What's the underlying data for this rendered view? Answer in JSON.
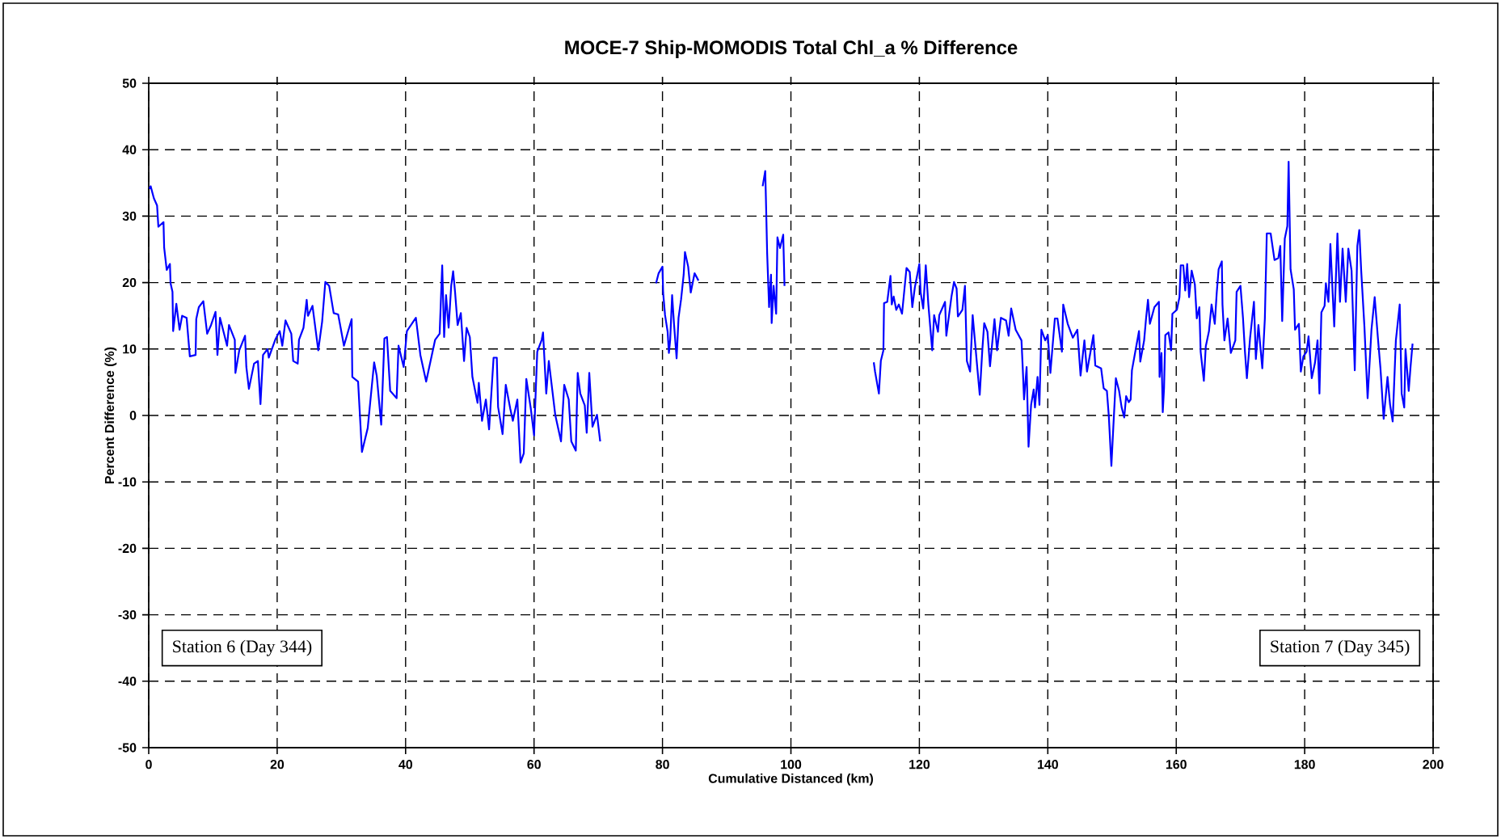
{
  "chart_data": {
    "type": "line",
    "title": "MOCE-7 Ship-MOMODIS Total Chl_a % Difference",
    "xlabel": "Cumulative Distanced (km)",
    "ylabel": "Percent Difference (%)",
    "annotations": [
      "Station 6 (Day 344)",
      "Station 7 (Day 345)"
    ],
    "xlim": [
      0,
      200
    ],
    "ylim": [
      -50,
      50
    ],
    "xticks": [
      0,
      20,
      40,
      60,
      80,
      100,
      120,
      140,
      160,
      180,
      200
    ],
    "yticks": [
      -50,
      -40,
      -30,
      -20,
      -10,
      0,
      10,
      20,
      30,
      40,
      50
    ],
    "grid": true,
    "marker": "none",
    "line_style": "solid",
    "series": [
      {
        "color": "#0000ff",
        "x": [
          0.1,
          0.3,
          0.8,
          1.3,
          1.5,
          2.3,
          2.4,
          2.8,
          3.3,
          3.4,
          3.7,
          3.8,
          4.3,
          4.8,
          5.2,
          5.9,
          6.4,
          7.3,
          7.4,
          7.8,
          8.5,
          9.1,
          9.7,
          10.4,
          10.7,
          11.1,
          12.2,
          12.5,
          13.4,
          13.5,
          14.1,
          15.0,
          15.2,
          15.6,
          16.4,
          17.0,
          17.4,
          17.8,
          18.5,
          18.7,
          19.7,
          20.4,
          20.8,
          21.3,
          22.2,
          22.5,
          23.2,
          23.4,
          24.1,
          24.6,
          24.8,
          25.5,
          26.4,
          27.0,
          27.5,
          28.1,
          28.8,
          29.5,
          30.4,
          31.6,
          31.7,
          32.6,
          33.2,
          34.1,
          35.1,
          35.5,
          36.2,
          36.7,
          37.1,
          37.6,
          38.6,
          38.9,
          39.7,
          40.2,
          41.6,
          42.3,
          43.2,
          44.6,
          45.3,
          45.7,
          46.0,
          46.3,
          46.7,
          47.1,
          47.4,
          47.7,
          48.1,
          48.6,
          49.1,
          49.5,
          50.0,
          50.4,
          51.2,
          51.4,
          51.9,
          52.5,
          53.0,
          53.7,
          54.2,
          54.4,
          55.1,
          55.6,
          56.3,
          56.7,
          57.4,
          57.9,
          58.4,
          58.8,
          59.5,
          60.0,
          60.5,
          61.2,
          61.4,
          61.9,
          62.3,
          63.3,
          64.2,
          64.7,
          65.4,
          65.8,
          66.5,
          66.8,
          67.2,
          67.9,
          68.2,
          68.6,
          69.1,
          69.8,
          70.3,
          74.6,
          79.0,
          79.4,
          80.0,
          80.1,
          80.4,
          80.8,
          81.0,
          81.2,
          81.5,
          81.8,
          82.2,
          82.5,
          82.9,
          83.3,
          83.5,
          84.0,
          84.4,
          85.0,
          85.6,
          90.6,
          95.6,
          96.0,
          96.1,
          96.3,
          96.6,
          96.9,
          97.0,
          97.3,
          97.7,
          97.9,
          98.3,
          98.8,
          99.0,
          106.0,
          112.9,
          113.1,
          113.7,
          114.0,
          114.4,
          114.5,
          115.0,
          115.5,
          115.7,
          116.0,
          116.4,
          116.8,
          117.3,
          118.0,
          118.5,
          118.9,
          119.3,
          120.0,
          120.2,
          120.6,
          121.0,
          121.4,
          122.0,
          122.3,
          122.9,
          123.1,
          124.0,
          124.2,
          125.0,
          125.4,
          125.8,
          126.0,
          126.7,
          127.1,
          127.4,
          127.9,
          128.3,
          129.0,
          129.4,
          129.8,
          130.1,
          130.6,
          131.0,
          131.7,
          132.1,
          132.7,
          133.5,
          133.9,
          134.3,
          135.0,
          135.9,
          136.1,
          136.3,
          136.7,
          137.0,
          137.4,
          137.8,
          138.0,
          138.4,
          138.7,
          139.0,
          139.6,
          140.0,
          140.4,
          141.1,
          141.5,
          142.2,
          142.4,
          143.1,
          143.9,
          144.6,
          145.1,
          145.7,
          146.1,
          146.8,
          147.1,
          147.4,
          148.3,
          148.7,
          149.2,
          149.5,
          149.9,
          150.2,
          150.6,
          151.1,
          151.5,
          151.9,
          152.2,
          152.6,
          152.9,
          153.1,
          153.7,
          154.2,
          154.4,
          155.0,
          155.3,
          155.6,
          155.9,
          156.6,
          157.3,
          157.4,
          157.7,
          157.9,
          158.1,
          158.3,
          158.8,
          159.2,
          159.4,
          160.1,
          160.5,
          160.7,
          161.1,
          161.4,
          161.7,
          162.0,
          162.4,
          162.9,
          163.2,
          163.6,
          163.8,
          164.3,
          164.6,
          165.1,
          165.5,
          166.0,
          166.3,
          166.6,
          167.1,
          167.2,
          167.5,
          168.0,
          168.5,
          169.2,
          169.4,
          170.0,
          170.4,
          170.7,
          171.0,
          171.5,
          172.1,
          172.4,
          172.8,
          173.4,
          173.8,
          174.1,
          174.7,
          175.3,
          175.9,
          176.2,
          176.5,
          176.9,
          177.3,
          177.5,
          177.8,
          178.3,
          178.5,
          179.1,
          179.4,
          179.8,
          180.3,
          180.6,
          181.1,
          181.6,
          182.0,
          182.3,
          182.6,
          183.1,
          183.3,
          183.7,
          184.0,
          184.6,
          185.1,
          185.5,
          185.9,
          186.4,
          186.8,
          187.3,
          187.8,
          188.2,
          188.5,
          188.8,
          189.3,
          189.8,
          190.4,
          190.9,
          191.4,
          191.8,
          192.3,
          192.9,
          193.3,
          193.7,
          194.2,
          194.8,
          195.1,
          195.5,
          195.7,
          196.2,
          196.5,
          196.8
        ],
        "values": [
          34.1,
          34.5,
          32.7,
          31.6,
          28.4,
          29.1,
          25.3,
          21.9,
          22.8,
          19.9,
          18.6,
          12.7,
          16.8,
          12.9,
          15.0,
          14.7,
          8.9,
          9.1,
          14.5,
          16.3,
          17.2,
          12.3,
          13.6,
          15.6,
          9.1,
          14.7,
          10.5,
          13.6,
          11.4,
          6.4,
          9.8,
          12.0,
          7.3,
          4.0,
          7.8,
          8.2,
          1.7,
          9.1,
          10.0,
          8.7,
          11.4,
          12.7,
          10.5,
          14.3,
          12.3,
          8.2,
          7.8,
          11.4,
          13.2,
          17.4,
          15.0,
          16.5,
          9.8,
          14.1,
          20.1,
          19.5,
          15.4,
          15.2,
          10.5,
          14.5,
          5.8,
          5.1,
          -5.5,
          -1.9,
          8.0,
          6.0,
          -1.4,
          11.6,
          11.8,
          3.7,
          2.6,
          10.5,
          7.3,
          12.7,
          14.7,
          9.1,
          5.1,
          11.4,
          12.3,
          22.6,
          11.8,
          18.1,
          13.2,
          19.5,
          21.7,
          18.6,
          13.6,
          15.4,
          8.2,
          13.2,
          11.8,
          5.8,
          1.9,
          4.9,
          -0.8,
          2.4,
          -2.1,
          8.7,
          8.7,
          1.3,
          -2.8,
          4.6,
          1.0,
          -0.8,
          2.4,
          -7.1,
          -5.7,
          5.5,
          1.0,
          -3.0,
          9.6,
          11.4,
          12.5,
          3.3,
          8.2,
          0.1,
          -3.9,
          4.6,
          2.4,
          -3.9,
          -5.3,
          6.4,
          3.3,
          1.5,
          -2.6,
          6.4,
          -1.7,
          0.1,
          -3.9,
          null,
          19.9,
          21.4,
          22.4,
          18.5,
          15.1,
          12.6,
          9.4,
          11.4,
          18.1,
          13.7,
          8.6,
          14.7,
          17.5,
          21.2,
          24.6,
          22.4,
          18.5,
          21.4,
          20.3,
          null,
          34.5,
          36.8,
          32.9,
          24.4,
          16.3,
          21.2,
          13.9,
          19.5,
          15.3,
          26.8,
          25.2,
          27.2,
          19.5,
          null,
          8.0,
          6.6,
          3.3,
          8.2,
          9.8,
          16.9,
          17.1,
          21.0,
          16.7,
          17.9,
          15.9,
          16.7,
          15.3,
          22.2,
          21.6,
          16.3,
          19.3,
          22.8,
          18.5,
          16.1,
          22.6,
          16.7,
          9.8,
          15.1,
          12.6,
          15.1,
          17.1,
          12.0,
          17.9,
          20.1,
          19.1,
          14.9,
          15.9,
          19.5,
          8.2,
          6.6,
          15.1,
          7.4,
          3.1,
          9.8,
          13.9,
          12.6,
          7.4,
          14.5,
          9.8,
          14.7,
          14.3,
          12.0,
          16.1,
          12.9,
          11.3,
          7.1,
          2.4,
          7.3,
          -4.7,
          1.6,
          3.9,
          1.2,
          5.8,
          1.6,
          12.9,
          11.3,
          12.1,
          6.4,
          14.6,
          14.6,
          9.6,
          16.7,
          13.8,
          11.7,
          12.9,
          6.0,
          11.3,
          6.6,
          10.4,
          12.1,
          7.5,
          7.1,
          4.1,
          3.7,
          -0.1,
          -7.6,
          -1.8,
          5.6,
          3.7,
          1.2,
          -0.3,
          2.9,
          2.0,
          2.4,
          6.8,
          10.0,
          12.7,
          8.1,
          11.3,
          14.6,
          17.4,
          13.8,
          16.3,
          17.1,
          5.8,
          9.4,
          0.5,
          4.1,
          12.1,
          12.5,
          9.8,
          15.3,
          15.9,
          17.8,
          22.6,
          22.6,
          18.8,
          22.8,
          17.8,
          21.8,
          19.7,
          14.6,
          16.3,
          9.6,
          5.2,
          10.4,
          12.7,
          16.7,
          13.8,
          18.4,
          22.0,
          23.2,
          16.7,
          11.3,
          14.6,
          9.4,
          11.3,
          18.6,
          19.5,
          14.6,
          9.6,
          5.6,
          11.7,
          17.1,
          8.5,
          13.6,
          7.1,
          14.6,
          27.4,
          27.4,
          23.4,
          23.7,
          25.5,
          14.2,
          26.6,
          28.5,
          38.2,
          22.0,
          19.0,
          12.9,
          13.8,
          6.6,
          8.9,
          9.6,
          11.9,
          5.6,
          7.9,
          11.3,
          3.3,
          15.5,
          16.5,
          19.9,
          17.1,
          25.8,
          13.4,
          27.4,
          17.1,
          25.1,
          17.1,
          25.1,
          21.8,
          6.8,
          25.5,
          27.9,
          21.8,
          13.4,
          2.6,
          12.9,
          17.8,
          11.7,
          7.1,
          -0.5,
          5.8,
          1.6,
          -0.9,
          11.3,
          16.7,
          3.3,
          1.2,
          10.0,
          3.7,
          7.5,
          10.8
        ]
      }
    ]
  }
}
